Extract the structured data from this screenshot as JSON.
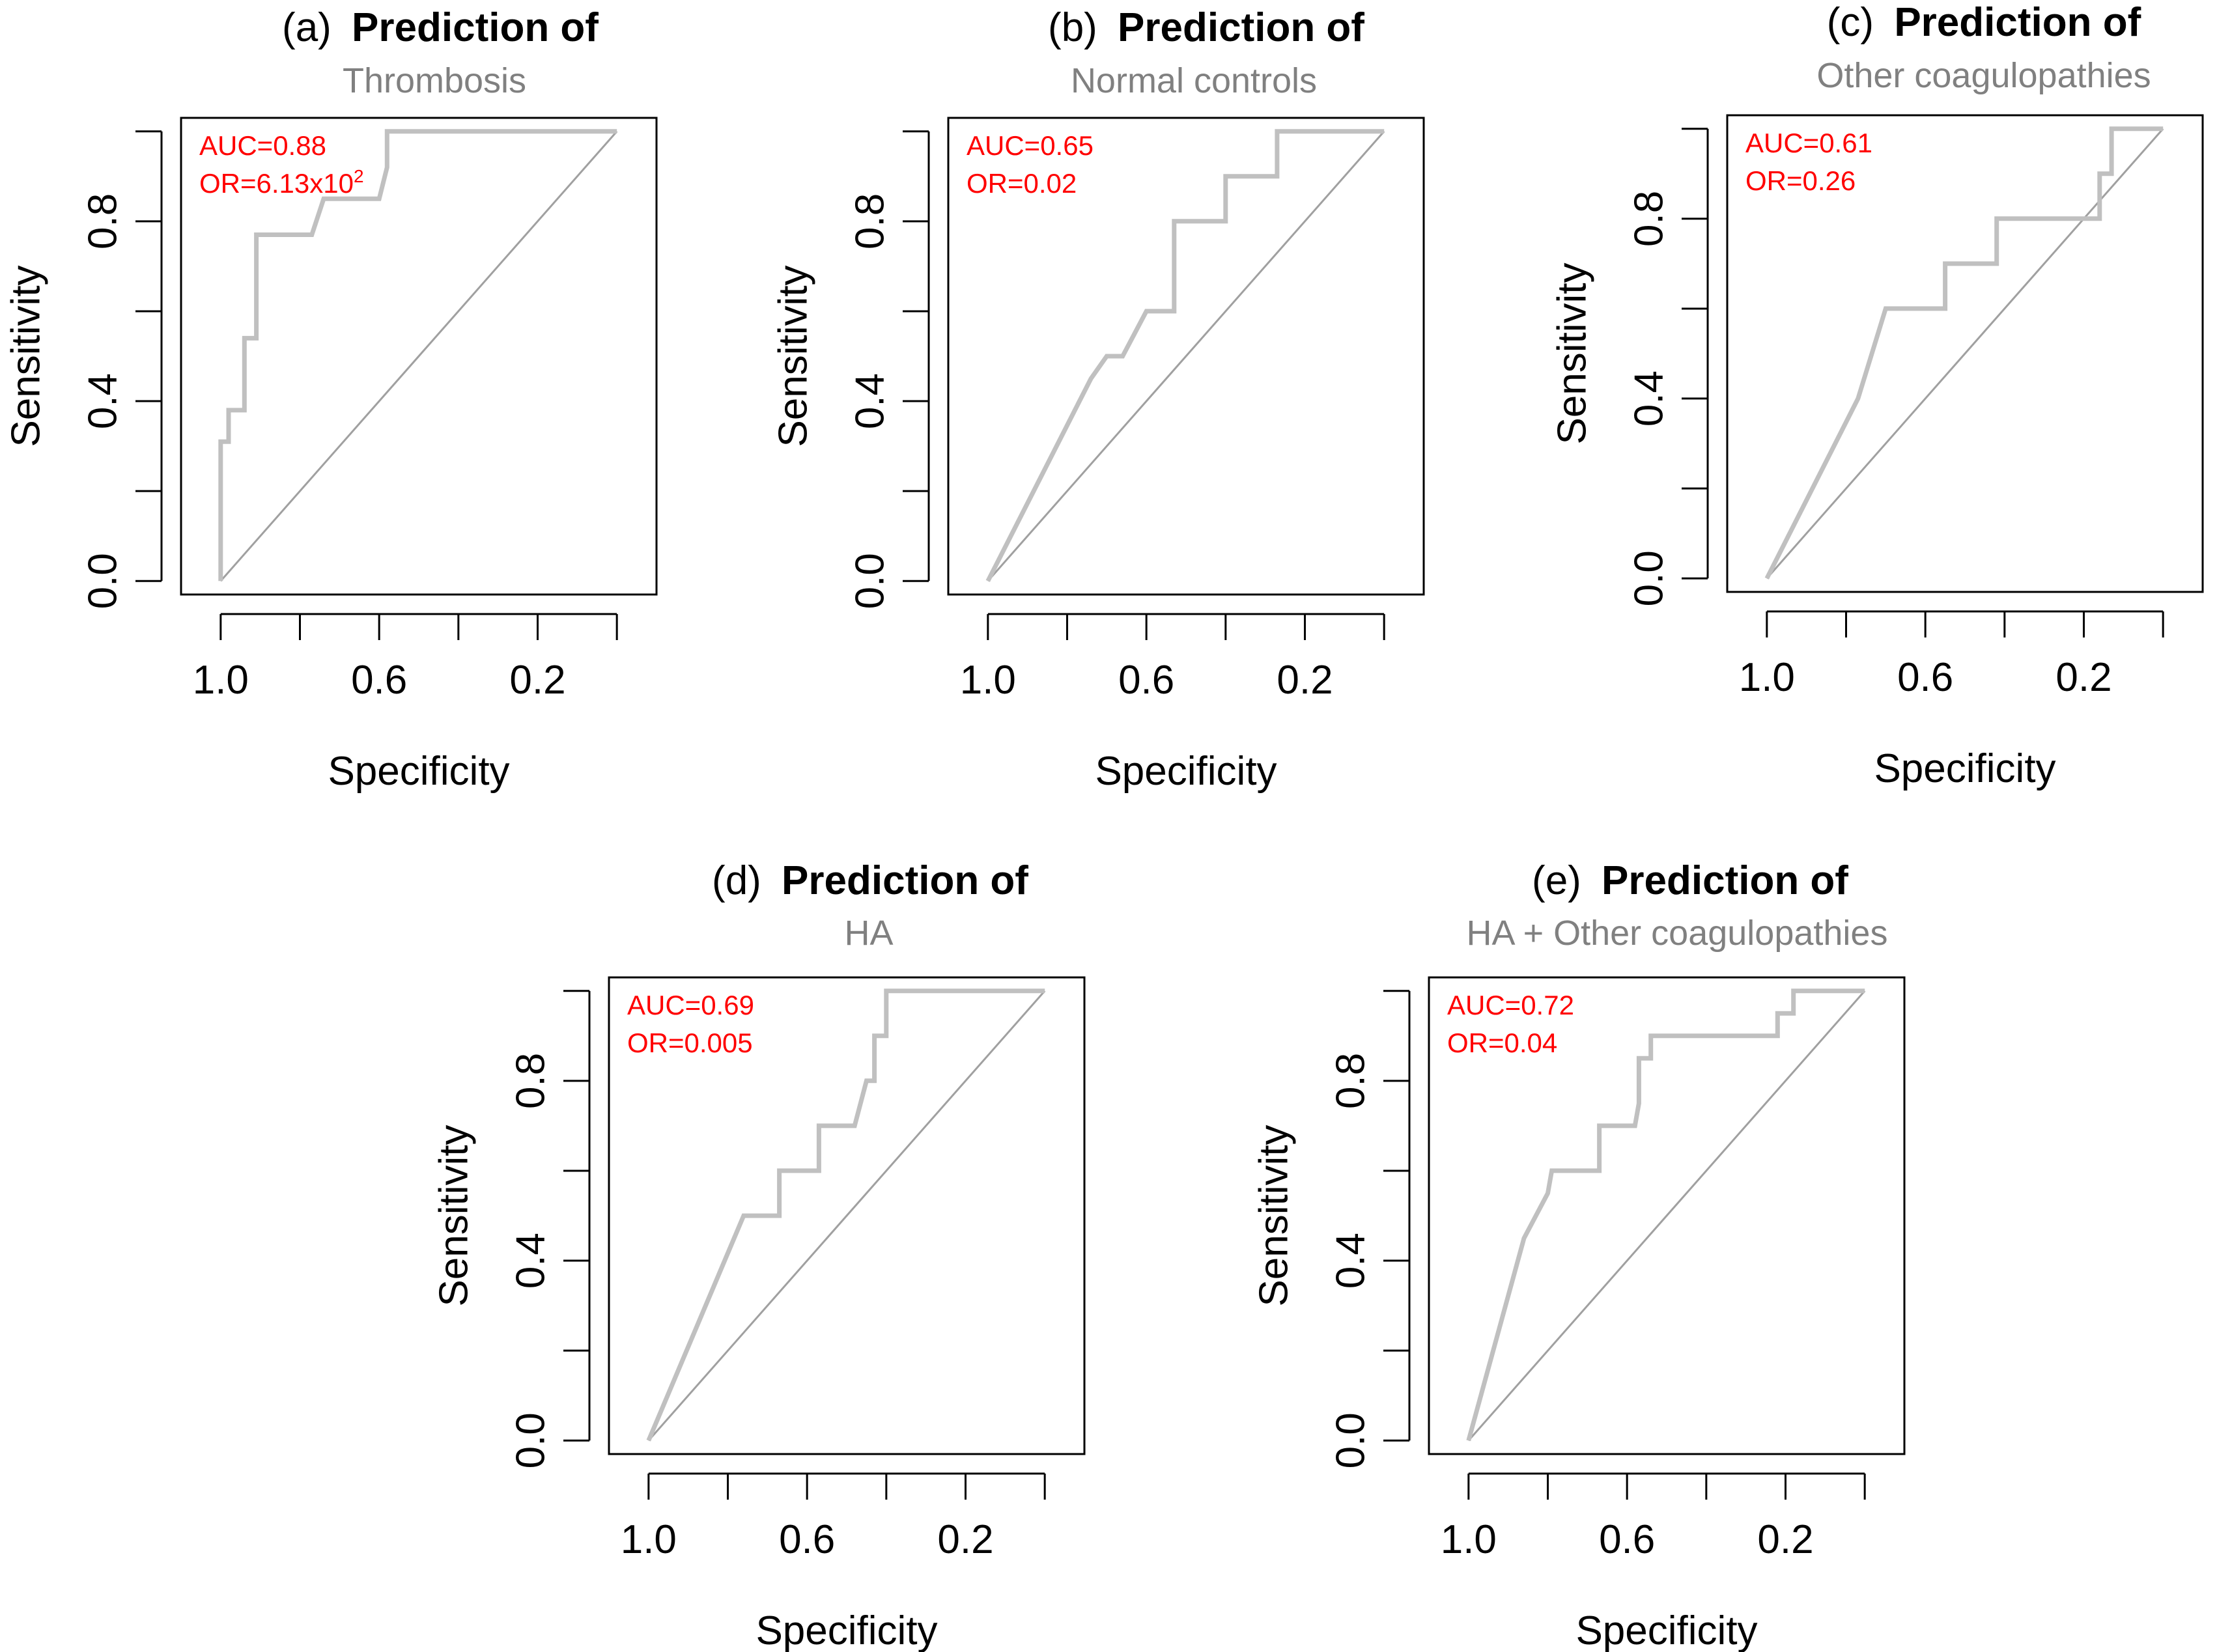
{
  "figure": {
    "colors": {
      "roc_curve": "#c0c0c0",
      "diagonal": "#a0a0a0",
      "frame": "#000000",
      "annotation": "#ff0000",
      "subtitle": "#808080",
      "title": "#000000"
    }
  },
  "chart_data": [
    {
      "type": "line",
      "panel_label": "(a)",
      "title": "Prediction of",
      "subtitle": "Thrombosis",
      "xlabel": "Specificity",
      "ylabel": "Sensitivity",
      "x_reversed": true,
      "xlim": [
        1.1,
        -0.1
      ],
      "ylim": [
        -0.03,
        1.03
      ],
      "x_ticks": [
        1.0,
        0.8,
        0.6,
        0.4,
        0.2,
        0.0
      ],
      "x_tick_labels": [
        "1.0",
        "0.6",
        "0.2"
      ],
      "x_tick_label_values": [
        1.0,
        0.6,
        0.2
      ],
      "y_ticks": [
        0.0,
        0.2,
        0.4,
        0.6,
        0.8,
        1.0
      ],
      "y_tick_labels": [
        "0.0",
        "0.4",
        "0.8"
      ],
      "y_tick_label_values": [
        0.0,
        0.4,
        0.8
      ],
      "annotations": [
        {
          "label": "AUC=0.88"
        },
        {
          "label": "OR=6.13x10",
          "superscript": "2"
        }
      ],
      "series": [
        {
          "name": "ROC",
          "x": [
            1.0,
            1.0,
            0.98,
            0.98,
            0.94,
            0.94,
            0.91,
            0.91,
            0.87,
            0.87,
            0.77,
            0.74,
            0.6,
            0.58,
            0.58,
            0.0
          ],
          "y": [
            0.0,
            0.31,
            0.31,
            0.38,
            0.38,
            0.54,
            0.54,
            0.77,
            0.77,
            0.77,
            0.77,
            0.85,
            0.85,
            0.92,
            1.0,
            1.0
          ]
        },
        {
          "name": "reference",
          "x": [
            1.0,
            0.0
          ],
          "y": [
            0.0,
            1.0
          ]
        }
      ]
    },
    {
      "type": "line",
      "panel_label": "(b)",
      "title": "Prediction of",
      "subtitle": "Normal controls",
      "xlabel": "Specificity",
      "ylabel": "Sensitivity",
      "x_reversed": true,
      "xlim": [
        1.1,
        -0.1
      ],
      "ylim": [
        -0.03,
        1.03
      ],
      "x_ticks": [
        1.0,
        0.8,
        0.6,
        0.4,
        0.2,
        0.0
      ],
      "x_tick_labels": [
        "1.0",
        "0.6",
        "0.2"
      ],
      "x_tick_label_values": [
        1.0,
        0.6,
        0.2
      ],
      "y_ticks": [
        0.0,
        0.2,
        0.4,
        0.6,
        0.8,
        1.0
      ],
      "y_tick_labels": [
        "0.0",
        "0.4",
        "0.8"
      ],
      "y_tick_label_values": [
        0.0,
        0.4,
        0.8
      ],
      "annotations": [
        {
          "label": "AUC=0.65"
        },
        {
          "label": "OR=0.02"
        }
      ],
      "series": [
        {
          "name": "ROC",
          "x": [
            1.0,
            0.74,
            0.7,
            0.66,
            0.6,
            0.53,
            0.53,
            0.4,
            0.4,
            0.27,
            0.27,
            0.0
          ],
          "y": [
            0.0,
            0.45,
            0.5,
            0.5,
            0.6,
            0.6,
            0.8,
            0.8,
            0.9,
            0.9,
            1.0,
            1.0
          ]
        },
        {
          "name": "reference",
          "x": [
            1.0,
            0.0
          ],
          "y": [
            0.0,
            1.0
          ]
        }
      ]
    },
    {
      "type": "line",
      "panel_label": "(c)",
      "title": "Prediction of",
      "subtitle": "Other coagulopathies",
      "xlabel": "Specificity",
      "ylabel": "Sensitivity",
      "x_reversed": true,
      "xlim": [
        1.1,
        -0.1
      ],
      "ylim": [
        -0.03,
        1.03
      ],
      "x_ticks": [
        1.0,
        0.8,
        0.6,
        0.4,
        0.2,
        0.0
      ],
      "x_tick_labels": [
        "1.0",
        "0.6",
        "0.2"
      ],
      "x_tick_label_values": [
        1.0,
        0.6,
        0.2
      ],
      "y_ticks": [
        0.0,
        0.2,
        0.4,
        0.6,
        0.8,
        1.0
      ],
      "y_tick_labels": [
        "0.0",
        "0.4",
        "0.8"
      ],
      "y_tick_label_values": [
        0.0,
        0.4,
        0.8
      ],
      "annotations": [
        {
          "label": "AUC=0.61"
        },
        {
          "label": "OR=0.26"
        }
      ],
      "series": [
        {
          "name": "ROC",
          "x": [
            1.0,
            0.77,
            0.7,
            0.55,
            0.55,
            0.42,
            0.42,
            0.19,
            0.19,
            0.16,
            0.16,
            0.13,
            0.13,
            0.0
          ],
          "y": [
            0.0,
            0.4,
            0.6,
            0.6,
            0.7,
            0.7,
            0.8,
            0.8,
            0.8,
            0.8,
            0.9,
            0.9,
            1.0,
            1.0
          ]
        },
        {
          "name": "reference",
          "x": [
            1.0,
            0.0
          ],
          "y": [
            0.0,
            1.0
          ]
        }
      ]
    },
    {
      "type": "line",
      "panel_label": "(d)",
      "title": "Prediction of",
      "subtitle": "HA",
      "xlabel": "Specificity",
      "ylabel": "Sensitivity",
      "x_reversed": true,
      "xlim": [
        1.1,
        -0.1
      ],
      "ylim": [
        -0.03,
        1.03
      ],
      "x_ticks": [
        1.0,
        0.8,
        0.6,
        0.4,
        0.2,
        0.0
      ],
      "x_tick_labels": [
        "1.0",
        "0.6",
        "0.2"
      ],
      "x_tick_label_values": [
        1.0,
        0.6,
        0.2
      ],
      "y_ticks": [
        0.0,
        0.2,
        0.4,
        0.6,
        0.8,
        1.0
      ],
      "y_tick_labels": [
        "0.0",
        "0.4",
        "0.8"
      ],
      "y_tick_label_values": [
        0.0,
        0.4,
        0.8
      ],
      "annotations": [
        {
          "label": "AUC=0.69"
        },
        {
          "label": "OR=0.005"
        }
      ],
      "series": [
        {
          "name": "ROC",
          "x": [
            1.0,
            0.76,
            0.67,
            0.67,
            0.57,
            0.57,
            0.48,
            0.45,
            0.43,
            0.43,
            0.4,
            0.4,
            0.0
          ],
          "y": [
            0.0,
            0.5,
            0.5,
            0.6,
            0.6,
            0.7,
            0.7,
            0.8,
            0.8,
            0.9,
            0.9,
            1.0,
            1.0
          ]
        },
        {
          "name": "reference",
          "x": [
            1.0,
            0.0
          ],
          "y": [
            0.0,
            1.0
          ]
        }
      ]
    },
    {
      "type": "line",
      "panel_label": "(e)",
      "title": "Prediction of",
      "subtitle": "HA + Other coagulopathies",
      "xlabel": "Specificity",
      "ylabel": "Sensitivity",
      "x_reversed": true,
      "xlim": [
        1.1,
        -0.1
      ],
      "ylim": [
        -0.03,
        1.03
      ],
      "x_ticks": [
        1.0,
        0.8,
        0.6,
        0.4,
        0.2,
        0.0
      ],
      "x_tick_labels": [
        "1.0",
        "0.6",
        "0.2"
      ],
      "x_tick_label_values": [
        1.0,
        0.6,
        0.2
      ],
      "y_ticks": [
        0.0,
        0.2,
        0.4,
        0.6,
        0.8,
        1.0
      ],
      "y_tick_labels": [
        "0.0",
        "0.4",
        "0.8"
      ],
      "y_tick_label_values": [
        0.0,
        0.4,
        0.8
      ],
      "annotations": [
        {
          "label": "AUC=0.72"
        },
        {
          "label": "OR=0.04"
        }
      ],
      "series": [
        {
          "name": "ROC",
          "x": [
            1.0,
            0.86,
            0.8,
            0.79,
            0.67,
            0.67,
            0.58,
            0.57,
            0.57,
            0.54,
            0.54,
            0.49,
            0.49,
            0.22,
            0.22,
            0.18,
            0.18,
            0.0
          ],
          "y": [
            0.0,
            0.45,
            0.55,
            0.6,
            0.6,
            0.7,
            0.7,
            0.75,
            0.85,
            0.85,
            0.9,
            0.9,
            0.9,
            0.9,
            0.95,
            0.95,
            1.0,
            1.0
          ]
        },
        {
          "name": "reference",
          "x": [
            1.0,
            0.0
          ],
          "y": [
            0.0,
            1.0
          ]
        }
      ]
    }
  ]
}
